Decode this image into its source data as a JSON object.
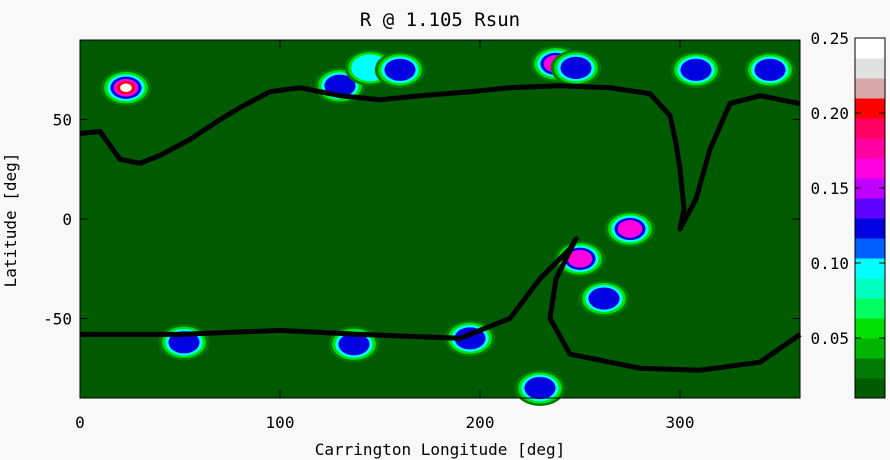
{
  "chart_data": {
    "type": "heatmap",
    "title": "R @ 1.105 Rsun",
    "xlabel": "Carrington Longitude [deg]",
    "ylabel": "Latitude [deg]",
    "xlim": [
      0,
      360
    ],
    "ylim": [
      -90,
      90
    ],
    "x_ticks": [
      "0",
      "100",
      "200",
      "300"
    ],
    "x_tick_values": [
      0,
      100,
      200,
      300
    ],
    "y_ticks": [
      "50",
      "0",
      "-50"
    ],
    "y_tick_values": [
      50,
      0,
      -50
    ],
    "colorbar": {
      "range": [
        0.01,
        0.25
      ],
      "ticks": [
        "0.25",
        "0.20",
        "0.15",
        "0.10",
        "0.05"
      ],
      "tick_values": [
        0.25,
        0.2,
        0.15,
        0.1,
        0.05
      ],
      "colors": [
        "#005a00",
        "#007a00",
        "#00b400",
        "#00e000",
        "#00ff60",
        "#00ffc0",
        "#00ffff",
        "#0060ff",
        "#0000e0",
        "#6000ff",
        "#c000ff",
        "#ff00e0",
        "#ff00a0",
        "#ff0060",
        "#ff0000",
        "#d8a8a8",
        "#e0e0e0",
        "#ffffff"
      ]
    },
    "neutral_line_north": [
      [
        0,
        43
      ],
      [
        10,
        44
      ],
      [
        20,
        30
      ],
      [
        30,
        28
      ],
      [
        40,
        32
      ],
      [
        55,
        40
      ],
      [
        70,
        50
      ],
      [
        80,
        56
      ],
      [
        95,
        64
      ],
      [
        110,
        66
      ],
      [
        130,
        62
      ],
      [
        150,
        60
      ],
      [
        170,
        62
      ],
      [
        195,
        64
      ],
      [
        215,
        66
      ],
      [
        240,
        67
      ],
      [
        265,
        66
      ],
      [
        285,
        63
      ],
      [
        295,
        52
      ],
      [
        298,
        38
      ],
      [
        300,
        25
      ],
      [
        302,
        5
      ],
      [
        300,
        -5
      ],
      [
        308,
        10
      ],
      [
        315,
        35
      ],
      [
        325,
        58
      ],
      [
        340,
        62
      ],
      [
        350,
        60
      ],
      [
        360,
        58
      ]
    ],
    "neutral_line_south": [
      [
        0,
        -58
      ],
      [
        50,
        -58
      ],
      [
        100,
        -56
      ],
      [
        140,
        -58
      ],
      [
        190,
        -60
      ],
      [
        215,
        -50
      ],
      [
        230,
        -30
      ],
      [
        245,
        -15
      ],
      [
        248,
        -10
      ],
      [
        238,
        -30
      ],
      [
        235,
        -50
      ],
      [
        245,
        -68
      ],
      [
        280,
        -75
      ],
      [
        310,
        -76
      ],
      [
        340,
        -72
      ],
      [
        360,
        -58
      ]
    ],
    "hotspots": [
      {
        "lon": 23,
        "lat": 66,
        "value": 0.25
      },
      {
        "lon": 130,
        "lat": 67,
        "value": 0.12
      },
      {
        "lon": 145,
        "lat": 76,
        "value": 0.11
      },
      {
        "lon": 160,
        "lat": 75,
        "value": 0.13
      },
      {
        "lon": 238,
        "lat": 78,
        "value": 0.16
      },
      {
        "lon": 248,
        "lat": 76,
        "value": 0.14
      },
      {
        "lon": 308,
        "lat": 75,
        "value": 0.15
      },
      {
        "lon": 345,
        "lat": 75,
        "value": 0.12
      },
      {
        "lon": 250,
        "lat": -20,
        "value": 0.16
      },
      {
        "lon": 275,
        "lat": -5,
        "value": 0.17
      },
      {
        "lon": 262,
        "lat": -40,
        "value": 0.14
      },
      {
        "lon": 195,
        "lat": -60,
        "value": 0.14
      },
      {
        "lon": 137,
        "lat": -63,
        "value": 0.12
      },
      {
        "lon": 52,
        "lat": -62,
        "value": 0.13
      },
      {
        "lon": 230,
        "lat": -85,
        "value": 0.12
      }
    ],
    "grid": false,
    "legend": "colorbar-right"
  }
}
